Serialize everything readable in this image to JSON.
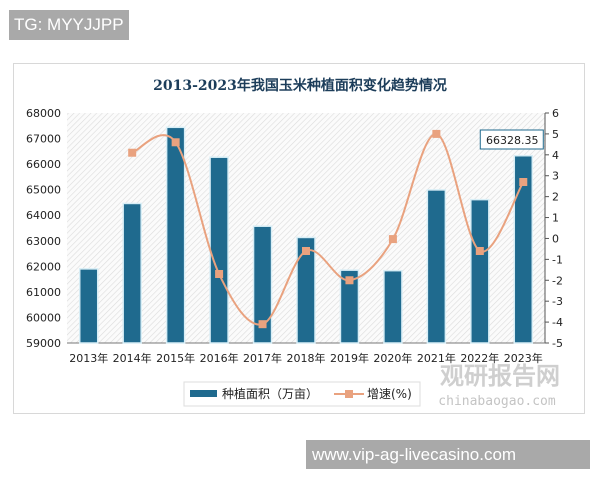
{
  "overlay": {
    "tag": "TG: MYYJJPP",
    "url": "www.vip-ag-livecasino.com"
  },
  "watermark": {
    "logo_text": "观研报告网",
    "domain": "chinabaogao.com"
  },
  "chart_data": {
    "type": "bar+line",
    "title": "2013-2023年我国玉米种植面积变化趋势情况",
    "categories": [
      "2013年",
      "2014年",
      "2015年",
      "2016年",
      "2017年",
      "2018年",
      "2019年",
      "2020年",
      "2021年",
      "2022年",
      "2023年"
    ],
    "series": [
      {
        "name": "种植面积（万亩）",
        "type": "bar",
        "axis": "left",
        "color": "#1f6a8e",
        "values": [
          61900,
          64460,
          67440,
          66270,
          63570,
          63130,
          61850,
          61830,
          64990,
          64610,
          66328.35
        ]
      },
      {
        "name": "增速(%)",
        "type": "line",
        "axis": "right",
        "color": "#e9a27f",
        "values": [
          null,
          4.1,
          4.6,
          -1.7,
          -4.1,
          -0.6,
          -2.0,
          -0.03,
          5.0,
          -0.6,
          2.7
        ]
      }
    ],
    "left_axis": {
      "ylim": [
        59000,
        68000
      ],
      "ticks": [
        "59000",
        "60000",
        "61000",
        "62000",
        "63000",
        "64000",
        "65000",
        "66000",
        "67000",
        "68000"
      ]
    },
    "right_axis": {
      "ylim": [
        -5,
        6
      ],
      "ticks": [
        "-5",
        "-4",
        "-3",
        "-2",
        "-1",
        "0",
        "1",
        "2",
        "3",
        "4",
        "5",
        "6"
      ]
    },
    "data_label": "66328.35",
    "legend_position": "bottom",
    "grid": false
  }
}
